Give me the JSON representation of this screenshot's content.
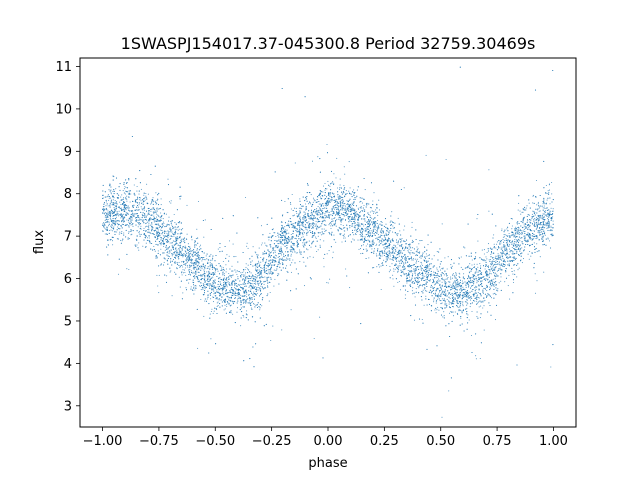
{
  "chart_data": {
    "type": "scatter",
    "title": "1SWASPJ154017.37-045300.8 Period 32759.30469s",
    "xlabel": "phase",
    "ylabel": "flux",
    "xlim": [
      -1.1,
      1.1
    ],
    "ylim": [
      2.5,
      11.2
    ],
    "xticks": [
      -1.0,
      -0.75,
      -0.5,
      -0.25,
      0.0,
      0.25,
      0.5,
      0.75,
      1.0
    ],
    "xtick_labels": [
      "−1.00",
      "−0.75",
      "−0.50",
      "−0.25",
      "0.00",
      "0.25",
      "0.50",
      "0.75",
      "1.00"
    ],
    "yticks": [
      3,
      4,
      5,
      6,
      7,
      8,
      9,
      10,
      11
    ],
    "ytick_labels": [
      "3",
      "4",
      "5",
      "6",
      "7",
      "8",
      "9",
      "10",
      "11"
    ],
    "grid": false,
    "point_color": "#1f77b4",
    "curve": {
      "phase": [
        -1.0,
        -0.9,
        -0.8,
        -0.7,
        -0.6,
        -0.5,
        -0.45,
        -0.4,
        -0.35,
        -0.3,
        -0.2,
        -0.1,
        0.0,
        0.05,
        0.1,
        0.2,
        0.3,
        0.4,
        0.5,
        0.55,
        0.6,
        0.65,
        0.7,
        0.8,
        0.9,
        1.0
      ],
      "flux": [
        7.5,
        7.6,
        7.4,
        6.9,
        6.4,
        5.9,
        5.75,
        5.7,
        5.8,
        6.1,
        6.8,
        7.3,
        7.6,
        7.65,
        7.55,
        7.1,
        6.6,
        6.2,
        5.8,
        5.75,
        5.7,
        5.8,
        6.05,
        6.7,
        7.2,
        7.5
      ]
    }
  }
}
